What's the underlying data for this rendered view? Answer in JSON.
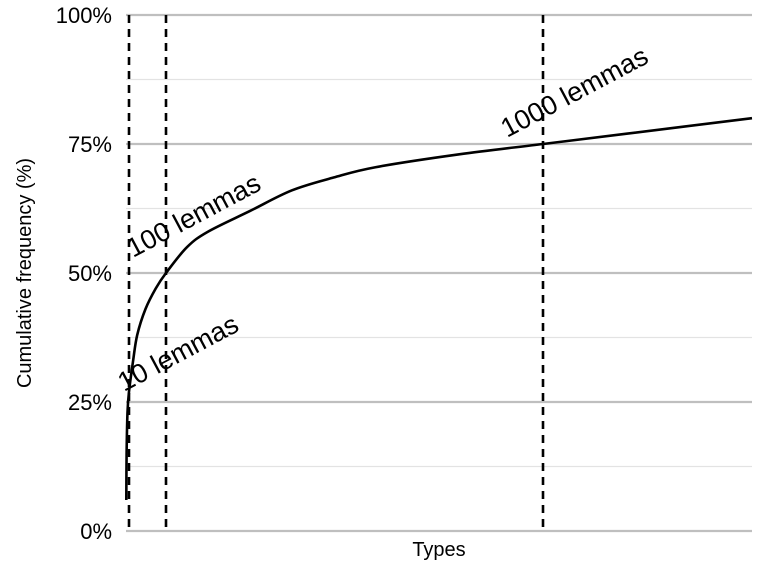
{
  "chart_data": {
    "type": "line",
    "xlabel": "Types",
    "ylabel": "Cumulative frequency (%)",
    "ylim": [
      0,
      100
    ],
    "y_ticks": [
      "0%",
      "25%",
      "50%",
      "75%",
      "100%"
    ],
    "y_tick_values": [
      0,
      25,
      50,
      75,
      100
    ],
    "grid": "horizontal",
    "series": [
      {
        "x": [
          1,
          2,
          5,
          10,
          20,
          30,
          50,
          75,
          100,
          150,
          200,
          300,
          400,
          500,
          600,
          800,
          1000,
          1200,
          1500
        ],
        "y": [
          6,
          15,
          23,
          27,
          33,
          38,
          43,
          47,
          50,
          55,
          58,
          62,
          66,
          68.5,
          70.5,
          73,
          75,
          77,
          80
        ]
      }
    ],
    "reference_lines": [
      {
        "x": 10,
        "label": "10 lemmas"
      },
      {
        "x": 100,
        "label": "100 lemmas"
      },
      {
        "x": 1000,
        "label": "1000 lemmas"
      }
    ],
    "xlim": [
      0,
      1500
    ]
  }
}
